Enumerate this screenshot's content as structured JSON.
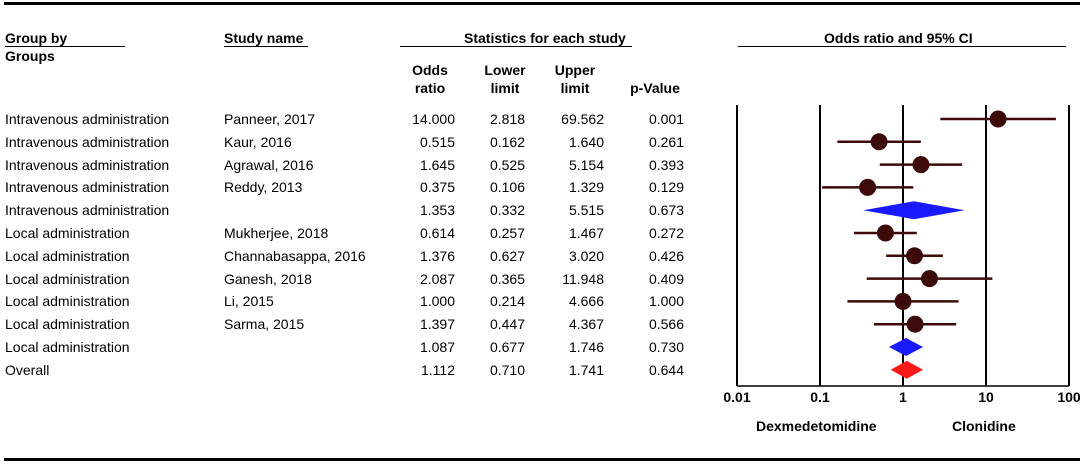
{
  "headers": {
    "group_by": "Group by",
    "groups": "Groups",
    "study_name": "Study name",
    "stats_title": "Statistics for each study",
    "odds": "Odds",
    "ratio": "ratio",
    "lower": "Lower",
    "limit_l": "limit",
    "upper": "Upper",
    "limit_u": "limit",
    "pvalue": "p-Value",
    "plot_title": "Odds ratio and 95% CI"
  },
  "rows": [
    {
      "group": "Intravenous administration",
      "study": "Panneer, 2017",
      "or": "14.000",
      "lower": "2.818",
      "upper": "69.562",
      "p": "0.001"
    },
    {
      "group": "Intravenous administration",
      "study": "Kaur, 2016",
      "or": "0.515",
      "lower": "0.162",
      "upper": "1.640",
      "p": "0.261"
    },
    {
      "group": "Intravenous administration",
      "study": "Agrawal, 2016",
      "or": "1.645",
      "lower": "0.525",
      "upper": "5.154",
      "p": "0.393"
    },
    {
      "group": "Intravenous administration",
      "study": "Reddy, 2013",
      "or": "0.375",
      "lower": "0.106",
      "upper": "1.329",
      "p": "0.129"
    },
    {
      "group": "Intravenous administration",
      "study": "",
      "or": "1.353",
      "lower": "0.332",
      "upper": "5.515",
      "p": "0.673"
    },
    {
      "group": "Local administration",
      "study": "Mukherjee, 2018",
      "or": "0.614",
      "lower": "0.257",
      "upper": "1.467",
      "p": "0.272"
    },
    {
      "group": "Local administration",
      "study": "Channabasappa, 2016",
      "or": "1.376",
      "lower": "0.627",
      "upper": "3.020",
      "p": "0.426"
    },
    {
      "group": "Local administration",
      "study": "Ganesh, 2018",
      "or": "2.087",
      "lower": "0.365",
      "upper": "11.948",
      "p": "0.409"
    },
    {
      "group": "Local administration",
      "study": "Li, 2015",
      "or": "1.000",
      "lower": "0.214",
      "upper": "4.666",
      "p": "1.000"
    },
    {
      "group": "Local administration",
      "study": "Sarma, 2015",
      "or": "1.397",
      "lower": "0.447",
      "upper": "4.367",
      "p": "0.566"
    },
    {
      "group": "Local administration",
      "study": "",
      "or": "1.087",
      "lower": "0.677",
      "upper": "1.746",
      "p": "0.730"
    },
    {
      "group": "Overall",
      "study": "",
      "or": "1.112",
      "lower": "0.710",
      "upper": "1.741",
      "p": "0.644"
    }
  ],
  "chart_data": {
    "type": "forest",
    "title": "Odds ratio and 95% CI",
    "scale": "log",
    "xlim": [
      0.01,
      100
    ],
    "ticks": [
      "0.01",
      "0.1",
      "1",
      "10",
      "100"
    ],
    "tick_values": [
      0.01,
      0.1,
      1,
      10,
      100
    ],
    "left_label": "Dexmedetomidine",
    "right_label": "Clonidine",
    "points": [
      {
        "name": "Panneer, 2017",
        "or": 14.0,
        "lower": 2.818,
        "upper": 69.562,
        "kind": "study"
      },
      {
        "name": "Kaur, 2016",
        "or": 0.515,
        "lower": 0.162,
        "upper": 1.64,
        "kind": "study"
      },
      {
        "name": "Agrawal, 2016",
        "or": 1.645,
        "lower": 0.525,
        "upper": 5.154,
        "kind": "study"
      },
      {
        "name": "Reddy, 2013",
        "or": 0.375,
        "lower": 0.106,
        "upper": 1.329,
        "kind": "study"
      },
      {
        "name": "Intravenous administration",
        "or": 1.353,
        "lower": 0.332,
        "upper": 5.515,
        "kind": "subgroup"
      },
      {
        "name": "Mukherjee, 2018",
        "or": 0.614,
        "lower": 0.257,
        "upper": 1.467,
        "kind": "study"
      },
      {
        "name": "Channabasappa, 2016",
        "or": 1.376,
        "lower": 0.627,
        "upper": 3.02,
        "kind": "study"
      },
      {
        "name": "Ganesh, 2018",
        "or": 2.087,
        "lower": 0.365,
        "upper": 11.948,
        "kind": "study"
      },
      {
        "name": "Li, 2015",
        "or": 1.0,
        "lower": 0.214,
        "upper": 4.666,
        "kind": "study"
      },
      {
        "name": "Sarma, 2015",
        "or": 1.397,
        "lower": 0.447,
        "upper": 4.367,
        "kind": "study"
      },
      {
        "name": "Local administration",
        "or": 1.087,
        "lower": 0.677,
        "upper": 1.746,
        "kind": "subgroup"
      },
      {
        "name": "Overall",
        "or": 1.112,
        "lower": 0.71,
        "upper": 1.741,
        "kind": "overall"
      }
    ],
    "colors": {
      "study_marker": "#3d0a0a",
      "ci_line": "#3d0a0a",
      "subgroup": "#1a1aff",
      "overall": "#ff1a1a"
    }
  }
}
